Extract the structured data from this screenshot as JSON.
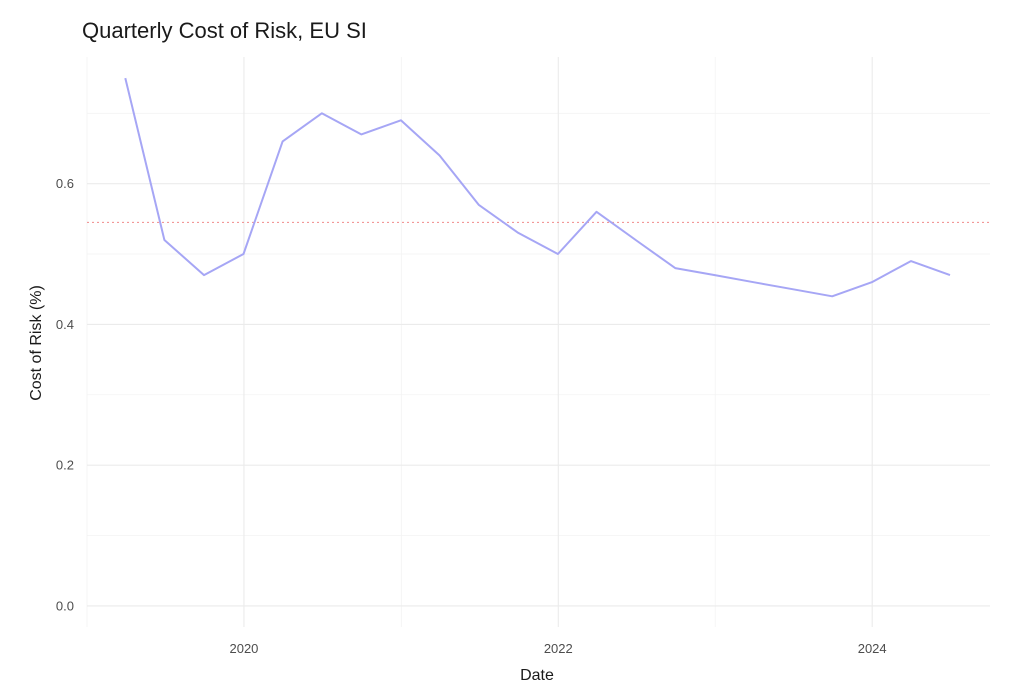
{
  "chart_data": {
    "type": "line",
    "title": "Quarterly Cost of Risk, EU SI",
    "xlabel": "Date",
    "ylabel": "Cost of Risk (%)",
    "x_ticks": [
      "2020",
      "2022",
      "2024"
    ],
    "y_ticks": [
      "0.0",
      "0.2",
      "0.4",
      "0.6"
    ],
    "xlim": [
      "2019-01-01",
      "2024-10-01"
    ],
    "ylim": [
      -0.03,
      0.78
    ],
    "grid": true,
    "series": [
      {
        "color": "#a6a6f5",
        "points": [
          {
            "x": "2019-03-31",
            "y": 0.75
          },
          {
            "x": "2019-06-30",
            "y": 0.52
          },
          {
            "x": "2019-09-30",
            "y": 0.47
          },
          {
            "x": "2019-12-31",
            "y": 0.5
          },
          {
            "x": "2020-03-31",
            "y": 0.66
          },
          {
            "x": "2020-06-30",
            "y": 0.7
          },
          {
            "x": "2020-09-30",
            "y": 0.67
          },
          {
            "x": "2020-12-31",
            "y": 0.69
          },
          {
            "x": "2021-03-31",
            "y": 0.64
          },
          {
            "x": "2021-06-30",
            "y": 0.57
          },
          {
            "x": "2021-09-30",
            "y": 0.53
          },
          {
            "x": "2021-12-31",
            "y": 0.5
          },
          {
            "x": "2022-03-31",
            "y": 0.56
          },
          {
            "x": "2022-06-30",
            "y": 0.52
          },
          {
            "x": "2022-09-30",
            "y": 0.48
          },
          {
            "x": "2022-12-31",
            "y": 0.47
          },
          {
            "x": "2023-03-31",
            "y": 0.46
          },
          {
            "x": "2023-06-30",
            "y": 0.45
          },
          {
            "x": "2023-09-30",
            "y": 0.44
          },
          {
            "x": "2023-12-31",
            "y": 0.46
          },
          {
            "x": "2024-03-31",
            "y": 0.49
          },
          {
            "x": "2024-06-30",
            "y": 0.47
          }
        ]
      }
    ],
    "reference_line": {
      "y": 0.545,
      "style": "dotted",
      "color": "#f08a8a"
    }
  }
}
